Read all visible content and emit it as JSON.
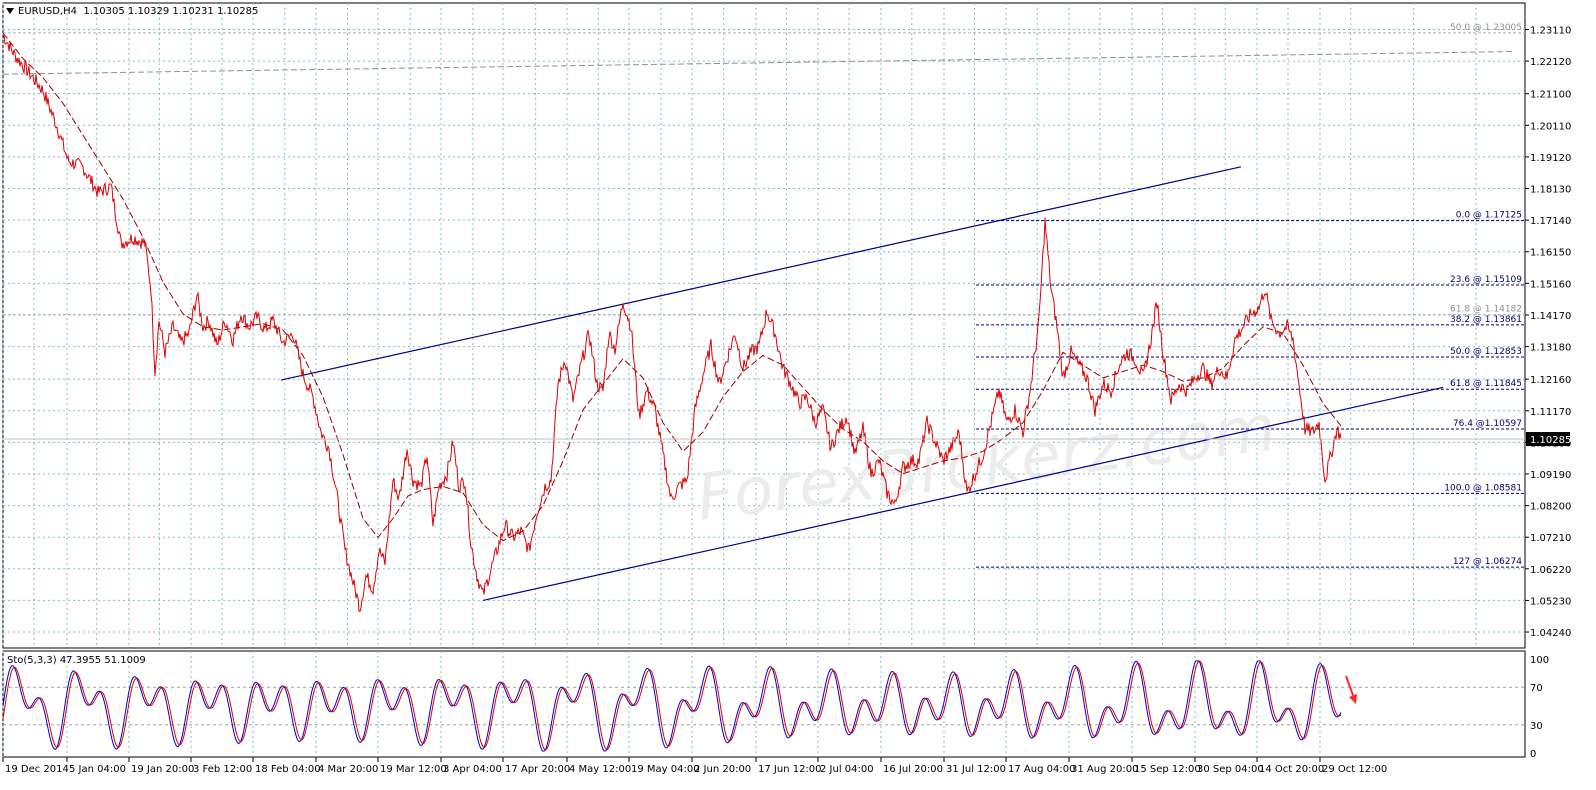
{
  "header": {
    "symbol_line": "EURUSD,H4  1.10305 1.10329 1.10231 1.10285"
  },
  "stoch_header": "Sto(5,3,3) 47.3955 51.1009",
  "current_price_label": "1.10285",
  "watermark": "ForexBrokerz.com",
  "colors": {
    "candle": "#e00000",
    "ma": "#990000",
    "channel": "#00008b",
    "fib": "#00007f",
    "grid": "#7fbfcf",
    "stoch_main": "#0000cc",
    "stoch_signal": "#dd0000",
    "arrow": "#ff2a2a"
  },
  "chart_data": [
    {
      "type": "line",
      "title": "",
      "xlabel": "",
      "ylabel": "",
      "ylim": [
        1.0374,
        1.2394
      ],
      "grid": true,
      "price_ticks": [
        "1.23110",
        "1.22120",
        "1.21100",
        "1.20110",
        "1.19120",
        "1.18130",
        "1.17140",
        "1.16150",
        "1.15160",
        "1.14170",
        "1.13180",
        "1.12160",
        "1.11170",
        "1.10180",
        "1.09190",
        "1.08200",
        "1.07210",
        "1.06220",
        "1.05230",
        "1.04240"
      ],
      "time_ticks": [
        "19 Dec 2014",
        "5 Jan 04:00",
        "19 Jan 20:00",
        "3 Feb 12:00",
        "18 Feb 04:00",
        "4 Mar 20:00",
        "19 Mar 12:00",
        "3 Apr 04:00",
        "17 Apr 20:00",
        "4 May 12:00",
        "19 May 04:00",
        "2 Jun 20:00",
        "17 Jun 12:00",
        "2 Jul 04:00",
        "16 Jul 20:00",
        "31 Jul 12:00",
        "17 Aug 04:00",
        "31 Aug 20:00",
        "15 Sep 12:00",
        "30 Sep 04:00",
        "14 Oct 20:00",
        "29 Oct 12:00"
      ],
      "series": [
        {
          "points": [
            [
              0,
              1.2294
            ],
            [
              12,
              1.223
            ],
            [
              25,
              1.218
            ],
            [
              40,
              1.212
            ],
            [
              55,
              1.2
            ],
            [
              65,
              1.19
            ],
            [
              80,
              1.188
            ],
            [
              95,
              1.18
            ],
            [
              108,
              1.182
            ],
            [
              118,
              1.164
            ],
            [
              130,
              1.166
            ],
            [
              142,
              1.164
            ],
            [
              148,
              1.15
            ],
            [
              152,
              1.124
            ],
            [
              156,
              1.14
            ],
            [
              162,
              1.13
            ],
            [
              170,
              1.138
            ],
            [
              178,
              1.133
            ],
            [
              186,
              1.136
            ],
            [
              194,
              1.148
            ],
            [
              200,
              1.138
            ],
            [
              206,
              1.14
            ],
            [
              214,
              1.132
            ],
            [
              222,
              1.14
            ],
            [
              230,
              1.134
            ],
            [
              238,
              1.142
            ],
            [
              246,
              1.138
            ],
            [
              254,
              1.141
            ],
            [
              262,
              1.137
            ],
            [
              270,
              1.14
            ],
            [
              280,
              1.133
            ],
            [
              290,
              1.136
            ],
            [
              300,
              1.123
            ],
            [
              310,
              1.116
            ],
            [
              318,
              1.105
            ],
            [
              326,
              1.1
            ],
            [
              334,
              1.085
            ],
            [
              342,
              1.068
            ],
            [
              350,
              1.058
            ],
            [
              357,
              1.05
            ],
            [
              363,
              1.06
            ],
            [
              370,
              1.056
            ],
            [
              376,
              1.068
            ],
            [
              382,
              1.064
            ],
            [
              390,
              1.09
            ],
            [
              396,
              1.084
            ],
            [
              404,
              1.1
            ],
            [
              410,
              1.09
            ],
            [
              418,
              1.088
            ],
            [
              424,
              1.098
            ],
            [
              430,
              1.076
            ],
            [
              436,
              1.088
            ],
            [
              444,
              1.092
            ],
            [
              450,
              1.102
            ],
            [
              456,
              1.088
            ],
            [
              462,
              1.09
            ],
            [
              468,
              1.07
            ],
            [
              474,
              1.06
            ],
            [
              480,
              1.054
            ],
            [
              486,
              1.06
            ],
            [
              494,
              1.068
            ],
            [
              502,
              1.076
            ],
            [
              510,
              1.072
            ],
            [
              518,
              1.074
            ],
            [
              526,
              1.068
            ],
            [
              534,
              1.08
            ],
            [
              542,
              1.088
            ],
            [
              548,
              1.09
            ],
            [
              555,
              1.12
            ],
            [
              562,
              1.128
            ],
            [
              570,
              1.115
            ],
            [
              578,
              1.126
            ],
            [
              586,
              1.136
            ],
            [
              594,
              1.12
            ],
            [
              600,
              1.118
            ],
            [
              606,
              1.136
            ],
            [
              612,
              1.131
            ],
            [
              620,
              1.146
            ],
            [
              628,
              1.138
            ],
            [
              636,
              1.11
            ],
            [
              644,
              1.118
            ],
            [
              652,
              1.112
            ],
            [
              660,
              1.098
            ],
            [
              668,
              1.084
            ],
            [
              676,
              1.088
            ],
            [
              684,
              1.09
            ],
            [
              692,
              1.112
            ],
            [
              700,
              1.123
            ],
            [
              708,
              1.132
            ],
            [
              716,
              1.12
            ],
            [
              724,
              1.128
            ],
            [
              732,
              1.136
            ],
            [
              740,
              1.125
            ],
            [
              748,
              1.13
            ],
            [
              756,
              1.132
            ],
            [
              764,
              1.143
            ],
            [
              772,
              1.136
            ],
            [
              780,
              1.125
            ],
            [
              788,
              1.12
            ],
            [
              796,
              1.114
            ],
            [
              804,
              1.116
            ],
            [
              812,
              1.108
            ],
            [
              820,
              1.112
            ],
            [
              828,
              1.1
            ],
            [
              836,
              1.106
            ],
            [
              844,
              1.11
            ],
            [
              852,
              1.098
            ],
            [
              860,
              1.106
            ],
            [
              868,
              1.092
            ],
            [
              876,
              1.096
            ],
            [
              884,
              1.086
            ],
            [
              892,
              1.082
            ],
            [
              900,
              1.094
            ],
            [
              908,
              1.096
            ],
            [
              916,
              1.096
            ],
            [
              924,
              1.108
            ],
            [
              932,
              1.102
            ],
            [
              940,
              1.096
            ],
            [
              948,
              1.1
            ],
            [
              956,
              1.105
            ],
            [
              964,
              1.086
            ],
            [
              972,
              1.092
            ],
            [
              980,
              1.098
            ],
            [
              988,
              1.108
            ],
            [
              996,
              1.118
            ],
            [
              1004,
              1.108
            ],
            [
              1012,
              1.112
            ],
            [
              1020,
              1.105
            ],
            [
              1028,
              1.12
            ],
            [
              1036,
              1.14
            ],
            [
              1042,
              1.171
            ],
            [
              1048,
              1.15
            ],
            [
              1054,
              1.138
            ],
            [
              1060,
              1.122
            ],
            [
              1068,
              1.13
            ],
            [
              1076,
              1.126
            ],
            [
              1084,
              1.122
            ],
            [
              1092,
              1.112
            ],
            [
              1100,
              1.12
            ],
            [
              1108,
              1.118
            ],
            [
              1116,
              1.126
            ],
            [
              1124,
              1.13
            ],
            [
              1132,
              1.128
            ],
            [
              1140,
              1.122
            ],
            [
              1148,
              1.134
            ],
            [
              1154,
              1.146
            ],
            [
              1160,
              1.13
            ],
            [
              1168,
              1.115
            ],
            [
              1176,
              1.12
            ],
            [
              1184,
              1.118
            ],
            [
              1192,
              1.122
            ],
            [
              1200,
              1.125
            ],
            [
              1208,
              1.12
            ],
            [
              1216,
              1.125
            ],
            [
              1224,
              1.122
            ],
            [
              1232,
              1.134
            ],
            [
              1240,
              1.138
            ],
            [
              1248,
              1.142
            ],
            [
              1256,
              1.144
            ],
            [
              1262,
              1.15
            ],
            [
              1268,
              1.14
            ],
            [
              1276,
              1.136
            ],
            [
              1284,
              1.138
            ],
            [
              1290,
              1.134
            ],
            [
              1296,
              1.12
            ],
            [
              1302,
              1.106
            ],
            [
              1310,
              1.105
            ],
            [
              1316,
              1.108
            ],
            [
              1322,
              1.09
            ],
            [
              1328,
              1.098
            ],
            [
              1334,
              1.106
            ],
            [
              1338,
              1.103
            ]
          ]
        },
        {
          "points": [
            [
              0,
              1.23
            ],
            [
              20,
              1.222
            ],
            [
              40,
              1.216
            ],
            [
              60,
              1.208
            ],
            [
              80,
              1.198
            ],
            [
              100,
              1.188
            ],
            [
              120,
              1.178
            ],
            [
              140,
              1.166
            ],
            [
              160,
              1.152
            ],
            [
              180,
              1.142
            ],
            [
              200,
              1.138
            ],
            [
              220,
              1.137
            ],
            [
              240,
              1.138
            ],
            [
              260,
              1.139
            ],
            [
              280,
              1.137
            ],
            [
              300,
              1.129
            ],
            [
              320,
              1.116
            ],
            [
              340,
              1.098
            ],
            [
              360,
              1.078
            ],
            [
              375,
              1.072
            ],
            [
              390,
              1.078
            ],
            [
              405,
              1.085
            ],
            [
              420,
              1.087
            ],
            [
              440,
              1.088
            ],
            [
              460,
              1.086
            ],
            [
              480,
              1.076
            ],
            [
              500,
              1.071
            ],
            [
              520,
              1.074
            ],
            [
              540,
              1.082
            ],
            [
              560,
              1.096
            ],
            [
              580,
              1.112
            ],
            [
              600,
              1.12
            ],
            [
              620,
              1.128
            ],
            [
              640,
              1.122
            ],
            [
              660,
              1.108
            ],
            [
              680,
              1.099
            ],
            [
              700,
              1.105
            ],
            [
              720,
              1.116
            ],
            [
              740,
              1.124
            ],
            [
              760,
              1.129
            ],
            [
              780,
              1.126
            ],
            [
              800,
              1.119
            ],
            [
              820,
              1.112
            ],
            [
              840,
              1.106
            ],
            [
              860,
              1.102
            ],
            [
              880,
              1.096
            ],
            [
              900,
              1.092
            ],
            [
              920,
              1.094
            ],
            [
              940,
              1.096
            ],
            [
              960,
              1.097
            ],
            [
              980,
              1.099
            ],
            [
              1000,
              1.103
            ],
            [
              1020,
              1.108
            ],
            [
              1040,
              1.118
            ],
            [
              1060,
              1.13
            ],
            [
              1080,
              1.126
            ],
            [
              1100,
              1.122
            ],
            [
              1120,
              1.124
            ],
            [
              1140,
              1.126
            ],
            [
              1160,
              1.124
            ],
            [
              1180,
              1.121
            ],
            [
              1200,
              1.122
            ],
            [
              1220,
              1.125
            ],
            [
              1240,
              1.132
            ],
            [
              1260,
              1.138
            ],
            [
              1280,
              1.136
            ],
            [
              1300,
              1.126
            ],
            [
              1320,
              1.114
            ],
            [
              1338,
              1.107
            ]
          ]
        }
      ],
      "channel": {
        "upper": [
          [
            278,
            1.1213
          ],
          [
            1238,
            1.1881
          ]
        ],
        "lower": [
          [
            480,
            1.0523
          ],
          [
            1440,
            1.119
          ]
        ]
      },
      "fib_levels": [
        {
          "label": "0.0 @ 1.17125",
          "price": 1.17125
        },
        {
          "label": "23.6 @ 1.15109",
          "price": 1.15109
        },
        {
          "label": "38.2 @ 1.13861",
          "price": 1.13861
        },
        {
          "label": "50.0 @ 1.12853",
          "price": 1.12853
        },
        {
          "label": "61.8 @ 1.11845",
          "price": 1.11845
        },
        {
          "label": "76.4 @1.10597",
          "price": 1.10597
        },
        {
          "label": "100.0 @ 1.08581",
          "price": 1.08581
        },
        {
          "label": "127 @ 1.06274",
          "price": 1.06274
        }
      ],
      "faint_levels": [
        {
          "label": "50.0 @ 1.23005",
          "price": 1.23005
        },
        {
          "label": "61.8 @ 1.14182",
          "price": 1.14182
        }
      ],
      "long_trendline": [
        [
          0,
          1.2171
        ],
        [
          1510,
          1.2242
        ]
      ],
      "current_price": 1.10285
    },
    {
      "type": "line",
      "title": "Sto(5,3,3) 47.3955 51.1009",
      "ylim": [
        0,
        100
      ],
      "ticks": [
        "100",
        "70",
        "30",
        "0"
      ],
      "levels": [
        70,
        30
      ],
      "wave_periods": [
        13,
        17,
        11,
        19,
        15
      ],
      "last_main": 47.3955,
      "last_signal": 51.1009
    }
  ]
}
